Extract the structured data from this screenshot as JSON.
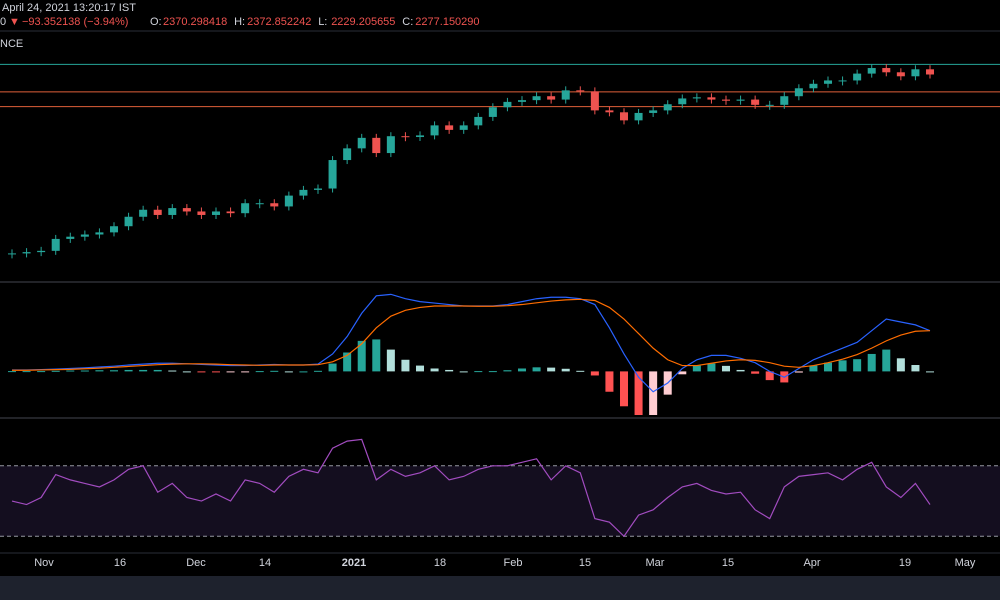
{
  "header": {
    "datetime": "April 24, 2021 13:20:17 IST",
    "last": "0",
    "arrow": "▼",
    "change": "−93.352138 (−3.94%)",
    "ohlc": [
      {
        "label": "O:",
        "value": "2370.298418"
      },
      {
        "label": "H:",
        "value": "2372.852242"
      },
      {
        "label": "L:",
        "value": "2229.205655"
      },
      {
        "label": "C:",
        "value": "2277.150290"
      }
    ],
    "source": "NCE"
  },
  "time_axis": {
    "labels": [
      "Nov",
      "16",
      "Dec",
      "14",
      "2021",
      "18",
      "Feb",
      "15",
      "Mar",
      "15",
      "Apr",
      "19",
      "May"
    ]
  },
  "chart_data": [
    {
      "type": "candlestick",
      "log": true,
      "ylim": [
        300,
        3400
      ],
      "up_color": "#26a69a",
      "down_color": "#ef5350",
      "closes": [
        390,
        395,
        400,
        450,
        460,
        470,
        480,
        510,
        560,
        600,
        570,
        610,
        590,
        570,
        590,
        580,
        640,
        640,
        620,
        690,
        730,
        740,
        980,
        1100,
        1220,
        1050,
        1240,
        1230,
        1250,
        1380,
        1320,
        1380,
        1500,
        1650,
        1740,
        1770,
        1840,
        1780,
        1950,
        1930,
        1600,
        1570,
        1450,
        1560,
        1600,
        1700,
        1800,
        1820,
        1780,
        1760,
        1780,
        1690,
        1690,
        1840,
        1990,
        2080,
        2150,
        2150,
        2300,
        2430,
        2330,
        2240,
        2400,
        2280
      ],
      "levels": [
        {
          "value": 2520,
          "color": "#26a69a"
        },
        {
          "value": 1920,
          "color": "#e0603a"
        },
        {
          "value": 1660,
          "color": "#e0603a"
        }
      ]
    },
    {
      "type": "macd",
      "ylim": [
        -150,
        280
      ],
      "series": [
        {
          "color": "#2962ff",
          "values": [
            5,
            5,
            6,
            8,
            10,
            12,
            15,
            18,
            22,
            25,
            28,
            28,
            26,
            24,
            22,
            20,
            20,
            22,
            24,
            22,
            22,
            25,
            60,
            120,
            200,
            260,
            265,
            250,
            240,
            235,
            230,
            225,
            225,
            225,
            230,
            240,
            250,
            255,
            255,
            250,
            230,
            150,
            60,
            -20,
            -70,
            -40,
            10,
            40,
            55,
            55,
            45,
            30,
            0,
            -20,
            10,
            40,
            60,
            80,
            100,
            140,
            180,
            170,
            160,
            140
          ]
        },
        {
          "color": "#ff6d00",
          "values": [
            4,
            4,
            5,
            6,
            7,
            9,
            11,
            14,
            17,
            20,
            23,
            25,
            26,
            26,
            25,
            23,
            22,
            21,
            22,
            22,
            22,
            23,
            33,
            55,
            95,
            150,
            190,
            210,
            220,
            225,
            225,
            225,
            224,
            224,
            226,
            230,
            236,
            242,
            246,
            248,
            244,
            220,
            180,
            130,
            80,
            40,
            20,
            20,
            28,
            36,
            40,
            38,
            30,
            18,
            14,
            20,
            30,
            42,
            58,
            80,
            105,
            125,
            138,
            140
          ]
        }
      ],
      "histogram": {
        "colors": [
          "#26a69a",
          "#b2dfdb",
          "#ffcdd2",
          "#ff5252"
        ],
        "values": [
          1,
          1,
          1,
          2,
          3,
          3,
          4,
          4,
          5,
          5,
          5,
          3,
          0,
          -2,
          -3,
          -3,
          -2,
          1,
          2,
          0,
          0,
          2,
          27,
          65,
          105,
          110,
          75,
          40,
          20,
          10,
          5,
          0,
          1,
          1,
          4,
          10,
          14,
          13,
          9,
          2,
          -14,
          -70,
          -120,
          -150,
          -150,
          -80,
          -10,
          20,
          27,
          19,
          5,
          -8,
          -30,
          -38,
          -4,
          20,
          30,
          38,
          42,
          60,
          75,
          45,
          22,
          0
        ]
      }
    },
    {
      "type": "line",
      "ylim": [
        8,
        96
      ],
      "color": "#a24cc0",
      "bands": [
        30,
        70
      ],
      "band_color": "rgba(126,87,194,0.16)",
      "values": [
        50,
        48,
        52,
        65,
        62,
        60,
        58,
        62,
        68,
        70,
        55,
        60,
        52,
        50,
        54,
        50,
        62,
        60,
        55,
        64,
        68,
        66,
        80,
        84,
        85,
        62,
        68,
        64,
        66,
        70,
        62,
        64,
        68,
        70,
        70,
        72,
        74,
        62,
        70,
        66,
        40,
        38,
        30,
        42,
        45,
        52,
        58,
        60,
        56,
        54,
        55,
        45,
        40,
        58,
        64,
        65,
        66,
        62,
        68,
        72,
        58,
        52,
        60,
        48
      ]
    }
  ]
}
